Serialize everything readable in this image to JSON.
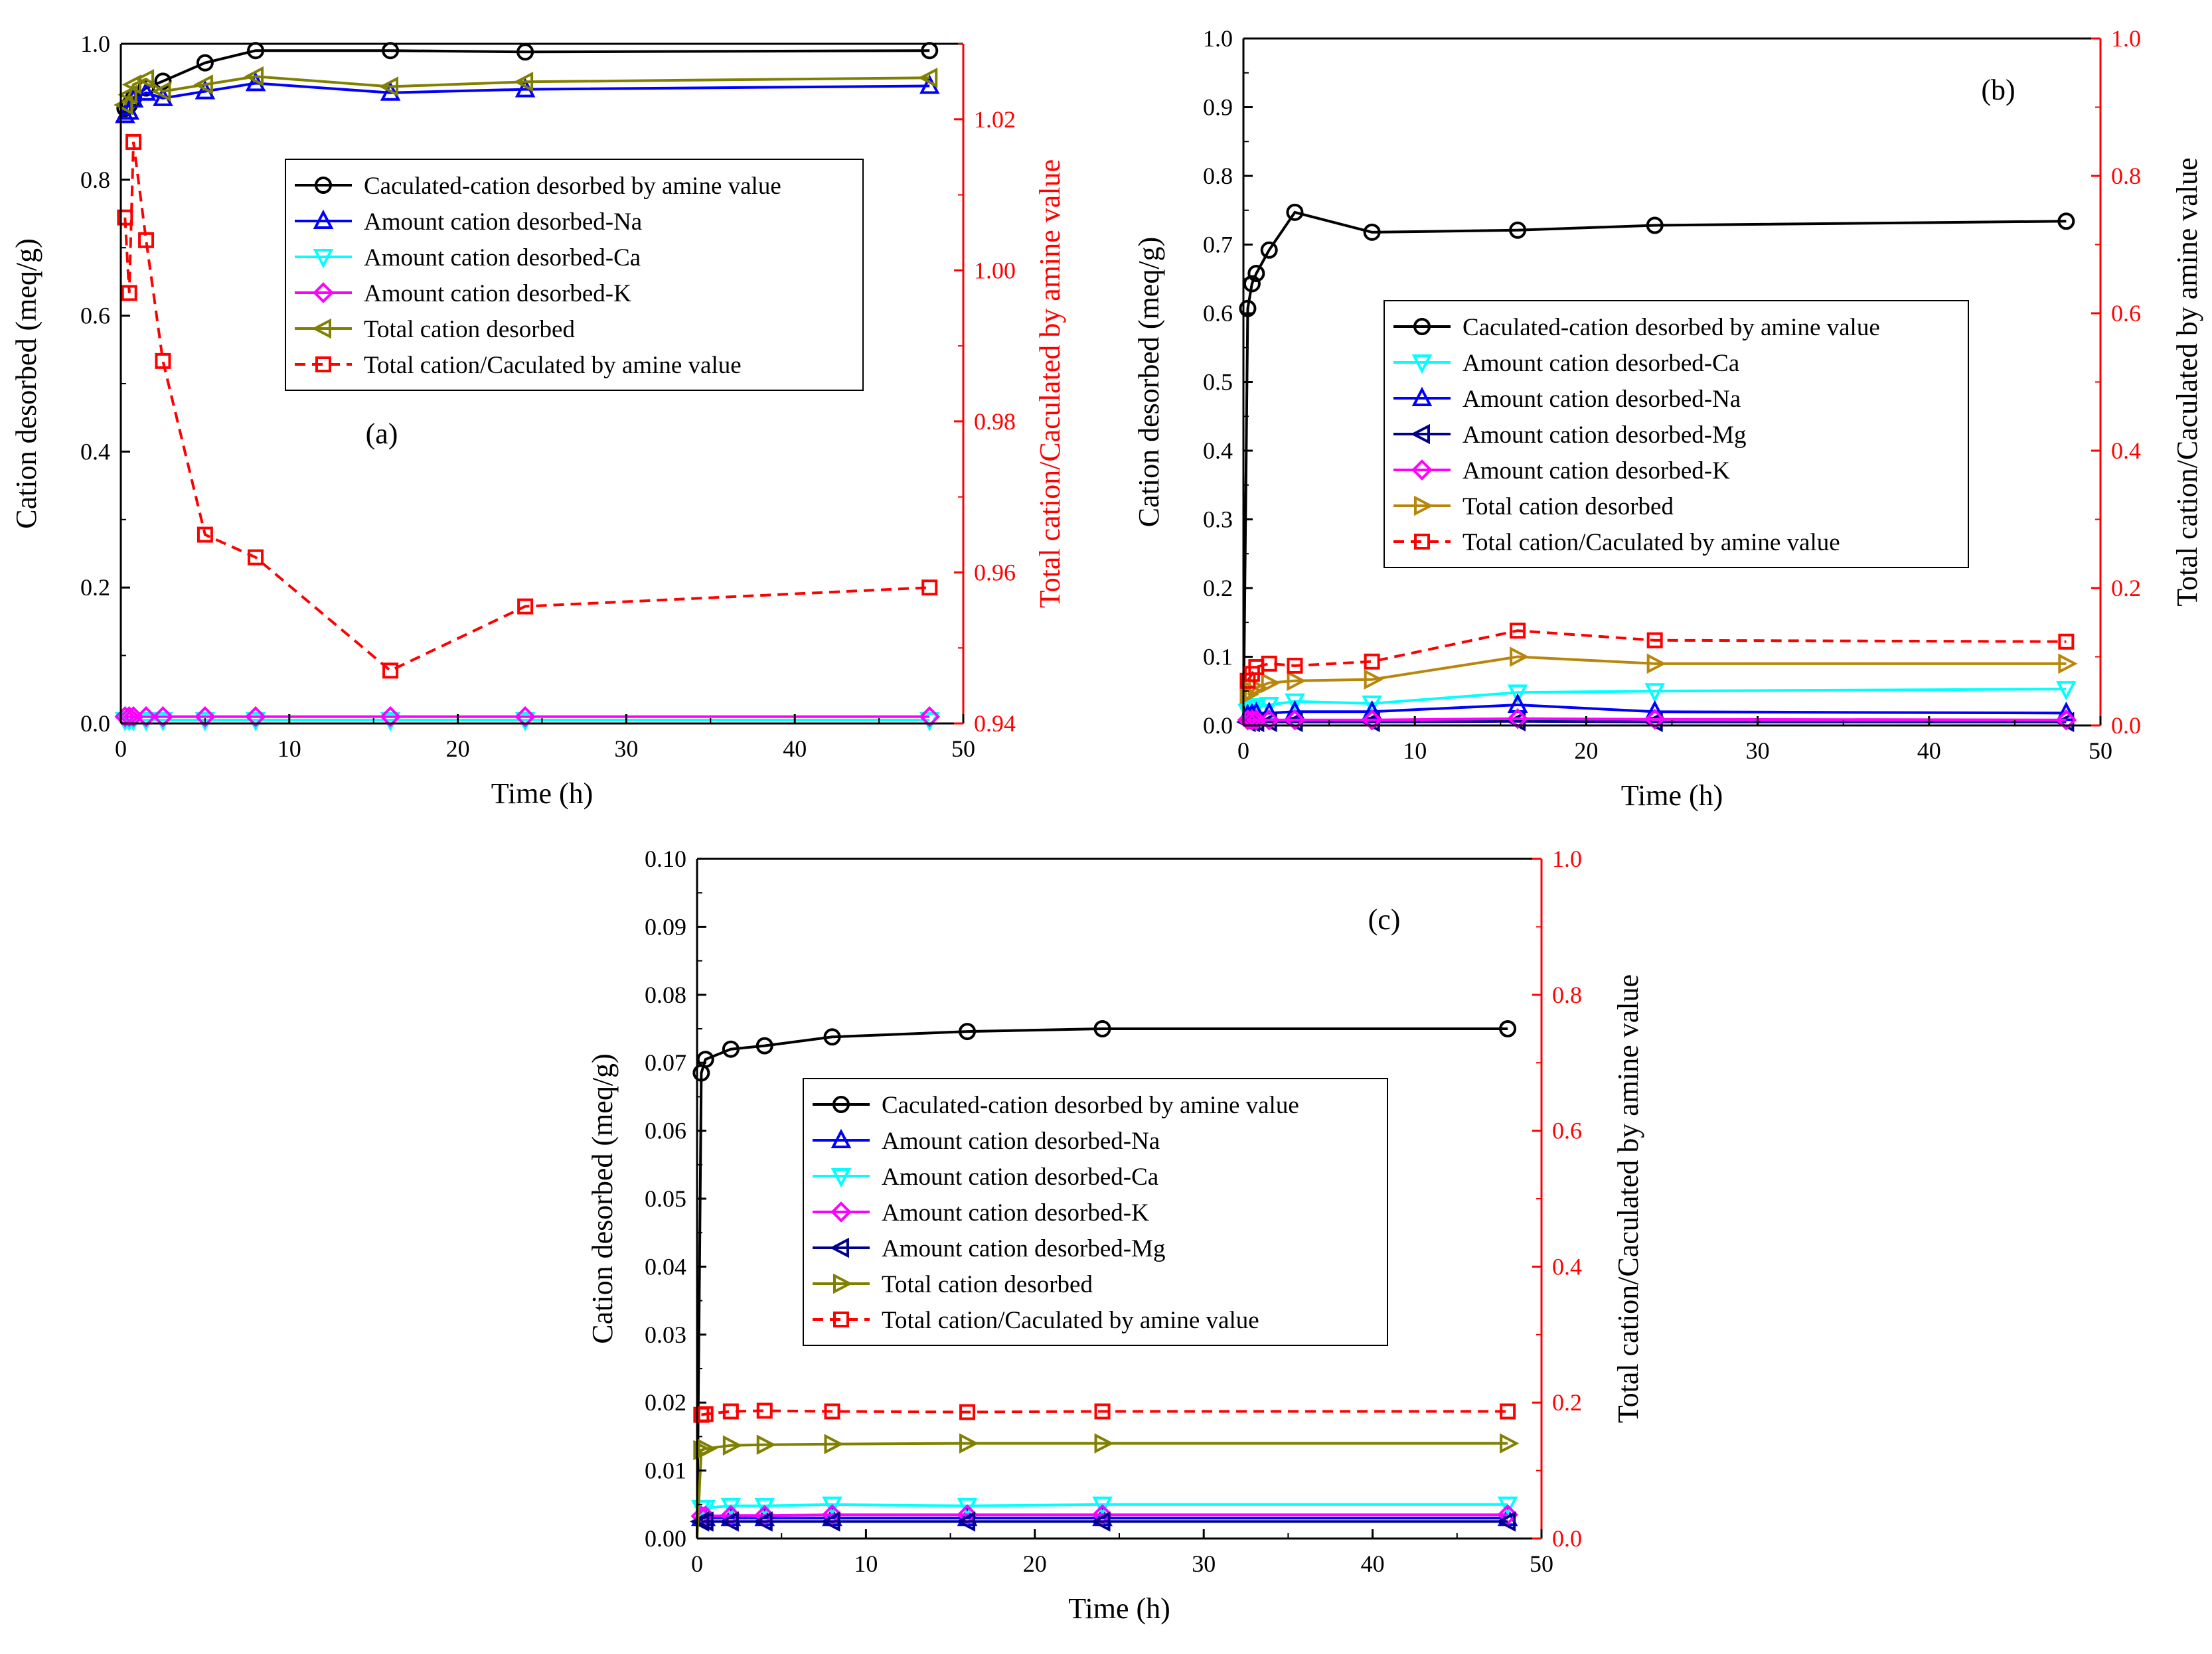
{
  "chart_data": [
    {
      "panel": "a",
      "type": "line",
      "panel_label": "(a)",
      "xlabel": "Time (h)",
      "ylabel": "Cation desorbed (meq/g)",
      "y2label": "Total cation/Caculated by amine value",
      "xlim": [
        0,
        50
      ],
      "ylim": [
        0,
        1.0
      ],
      "y2lim": [
        0.94,
        1.03
      ],
      "xticks": [
        "0",
        "10",
        "20",
        "30",
        "40",
        "50"
      ],
      "yticks": [
        "0.0",
        "0.2",
        "0.4",
        "0.6",
        "0.8",
        "1.0"
      ],
      "y2ticks": [
        "0.94",
        "0.96",
        "0.98",
        "1.00",
        "1.02"
      ],
      "series": [
        {
          "name": "Caculated-cation desorbed by  amine value",
          "axis": "left",
          "color": "#000000",
          "marker": "circle",
          "dash": false,
          "x": [
            0.25,
            0.5,
            0.75,
            1.5,
            2.5,
            5,
            8,
            16,
            24,
            48
          ],
          "y": [
            0.905,
            0.91,
            0.92,
            0.935,
            0.945,
            0.972,
            0.99,
            0.99,
            0.988,
            0.99
          ]
        },
        {
          "name": "Amount cation desorbed-Na",
          "axis": "left",
          "color": "#0000ff",
          "marker": "triangle-up",
          "dash": false,
          "x": [
            0.25,
            0.5,
            0.75,
            1.5,
            2.5,
            5,
            8,
            16,
            24,
            48
          ],
          "y": [
            0.895,
            0.9,
            0.918,
            0.928,
            0.92,
            0.93,
            0.942,
            0.928,
            0.933,
            0.938
          ]
        },
        {
          "name": "Amount cation desorbed-Ca",
          "axis": "left",
          "color": "#00ffff",
          "marker": "triangle-down",
          "dash": false,
          "x": [
            0.25,
            0.5,
            0.75,
            1.5,
            2.5,
            5,
            8,
            16,
            24,
            48
          ],
          "y": [
            0.005,
            0.005,
            0.005,
            0.005,
            0.005,
            0.005,
            0.005,
            0.005,
            0.005,
            0.005
          ]
        },
        {
          "name": "Amount cation desorbed-K",
          "axis": "left",
          "color": "#ff00ff",
          "marker": "diamond",
          "dash": false,
          "x": [
            0.25,
            0.5,
            0.75,
            1.5,
            2.5,
            5,
            8,
            16,
            24,
            48
          ],
          "y": [
            0.01,
            0.01,
            0.01,
            0.01,
            0.01,
            0.01,
            0.01,
            0.01,
            0.01,
            0.01
          ]
        },
        {
          "name": "Total cation desorbed",
          "axis": "left",
          "color": "#808000",
          "marker": "triangle-left",
          "dash": false,
          "x": [
            0.25,
            0.5,
            0.75,
            1.5,
            2.5,
            5,
            8,
            16,
            24,
            48
          ],
          "y": [
            0.91,
            0.925,
            0.94,
            0.948,
            0.93,
            0.94,
            0.952,
            0.937,
            0.944,
            0.95
          ]
        },
        {
          "name": "Total cation/Caculated by amine value",
          "axis": "right",
          "color": "#ff0000",
          "marker": "square",
          "dash": true,
          "x": [
            0.25,
            0.5,
            0.75,
            1.5,
            2.5,
            5,
            8,
            16,
            24,
            48
          ],
          "y": [
            1.007,
            0.997,
            1.017,
            1.004,
            0.988,
            0.965,
            0.962,
            0.947,
            0.9555,
            0.958
          ]
        }
      ]
    },
    {
      "panel": "b",
      "type": "line",
      "panel_label": "(b)",
      "xlabel": "Time (h)",
      "ylabel": "Cation desorbed (meq/g)",
      "y2label": "Total cation/Caculated by amine value",
      "xlim": [
        0,
        50
      ],
      "ylim": [
        0,
        1.0
      ],
      "y2lim": [
        0,
        1.0
      ],
      "xticks": [
        "0",
        "10",
        "20",
        "30",
        "40",
        "50"
      ],
      "yticks": [
        "0.0",
        "0.1",
        "0.2",
        "0.3",
        "0.4",
        "0.5",
        "0.6",
        "0.7",
        "0.8",
        "0.9",
        "1.0"
      ],
      "y2ticks": [
        "0.0",
        "0.2",
        "0.4",
        "0.6",
        "0.8",
        "1.0"
      ],
      "series": [
        {
          "name": "Caculated-cation desorbed by  amine value",
          "axis": "left",
          "color": "#000000",
          "marker": "circle",
          "dash": false,
          "x": [
            0,
            0.25,
            0.5,
            0.75,
            1.5,
            3,
            7.5,
            16,
            24,
            48
          ],
          "y": [
            0.0,
            0.607,
            0.643,
            0.658,
            0.692,
            0.747,
            0.718,
            0.721,
            0.728,
            0.734
          ]
        },
        {
          "name": "Amount cation desorbed-Ca",
          "axis": "left",
          "color": "#00ffff",
          "marker": "triangle-down",
          "dash": false,
          "x": [
            0.25,
            0.5,
            0.75,
            1.5,
            3,
            7.5,
            16,
            24,
            48
          ],
          "y": [
            0.02,
            0.025,
            0.028,
            0.03,
            0.035,
            0.032,
            0.048,
            0.05,
            0.053
          ]
        },
        {
          "name": "Amount cation desorbed-Na",
          "axis": "left",
          "color": "#0000ff",
          "marker": "triangle-up",
          "dash": false,
          "x": [
            0.25,
            0.5,
            0.75,
            1.5,
            3,
            7.5,
            16,
            24,
            48
          ],
          "y": [
            0.015,
            0.016,
            0.018,
            0.018,
            0.02,
            0.02,
            0.03,
            0.02,
            0.018
          ]
        },
        {
          "name": "Amount cation desorbed-Mg",
          "axis": "left",
          "color": "#00008b",
          "marker": "triangle-left",
          "dash": false,
          "x": [
            0.25,
            0.5,
            0.75,
            1.5,
            3,
            7.5,
            16,
            24,
            48
          ],
          "y": [
            0.005,
            0.005,
            0.005,
            0.005,
            0.005,
            0.005,
            0.006,
            0.005,
            0.005
          ]
        },
        {
          "name": "Amount cation desorbed-K",
          "axis": "left",
          "color": "#ff00ff",
          "marker": "diamond",
          "dash": false,
          "x": [
            0.25,
            0.5,
            0.75,
            1.5,
            3,
            7.5,
            16,
            24,
            48
          ],
          "y": [
            0.008,
            0.008,
            0.008,
            0.008,
            0.008,
            0.008,
            0.01,
            0.009,
            0.008
          ]
        },
        {
          "name": "Total cation desorbed",
          "axis": "left",
          "color": "#b8860b",
          "marker": "triangle-right",
          "dash": false,
          "x": [
            0.25,
            0.5,
            0.75,
            1.5,
            3,
            7.5,
            16,
            24,
            48
          ],
          "y": [
            0.045,
            0.05,
            0.055,
            0.062,
            0.065,
            0.067,
            0.1,
            0.09,
            0.09
          ]
        },
        {
          "name": "Total cation/Caculated by amine value",
          "axis": "right",
          "color": "#ff0000",
          "marker": "square",
          "dash": true,
          "x": [
            0.25,
            0.5,
            0.75,
            1.5,
            3,
            7.5,
            16,
            24,
            48
          ],
          "y": [
            0.065,
            0.075,
            0.085,
            0.09,
            0.087,
            0.093,
            0.138,
            0.124,
            0.122
          ]
        }
      ]
    },
    {
      "panel": "c",
      "type": "line",
      "panel_label": "(c)",
      "xlabel": "Time (h)",
      "ylabel": "Cation desorbed (meq/g)",
      "y2label": "Total cation/Caculated by amine value",
      "xlim": [
        0,
        50
      ],
      "ylim": [
        0,
        0.1
      ],
      "y2lim": [
        0,
        1.0
      ],
      "xticks": [
        "0",
        "10",
        "20",
        "30",
        "40",
        "50"
      ],
      "yticks": [
        "0.00",
        "0.01",
        "0.02",
        "0.03",
        "0.04",
        "0.05",
        "0.06",
        "0.07",
        "0.08",
        "0.09",
        "0.10"
      ],
      "y2ticks": [
        "0.0",
        "0.2",
        "0.4",
        "0.6",
        "0.8",
        "1.0"
      ],
      "series": [
        {
          "name": "Caculated-cation desorbed by  amine value",
          "axis": "left",
          "color": "#000000",
          "marker": "circle",
          "dash": false,
          "x": [
            0,
            0.25,
            0.5,
            2,
            4,
            8,
            16,
            24,
            48
          ],
          "y": [
            0.0,
            0.0685,
            0.0705,
            0.072,
            0.0725,
            0.0738,
            0.0746,
            0.075,
            0.075
          ]
        },
        {
          "name": "Amount cation desorbed-Na",
          "axis": "left",
          "color": "#0000ff",
          "marker": "triangle-up",
          "dash": false,
          "x": [
            0.25,
            0.5,
            2,
            4,
            8,
            16,
            24,
            48
          ],
          "y": [
            0.003,
            0.003,
            0.003,
            0.003,
            0.003,
            0.003,
            0.003,
            0.003
          ]
        },
        {
          "name": "Amount cation desorbed-Ca",
          "axis": "left",
          "color": "#00ffff",
          "marker": "triangle-down",
          "dash": false,
          "x": [
            0.25,
            0.5,
            2,
            4,
            8,
            16,
            24,
            48
          ],
          "y": [
            0.0045,
            0.0045,
            0.0048,
            0.0048,
            0.005,
            0.0048,
            0.005,
            0.005
          ]
        },
        {
          "name": "Amount cation desorbed-K",
          "axis": "left",
          "color": "#ff00ff",
          "marker": "diamond",
          "dash": false,
          "x": [
            0.25,
            0.5,
            2,
            4,
            8,
            16,
            24,
            48
          ],
          "y": [
            0.0033,
            0.0033,
            0.0034,
            0.0034,
            0.0035,
            0.0035,
            0.0035,
            0.0035
          ]
        },
        {
          "name": "Amount cation desorbed-Mg",
          "axis": "left",
          "color": "#00008b",
          "marker": "triangle-left",
          "dash": false,
          "x": [
            0.25,
            0.5,
            2,
            4,
            8,
            16,
            24,
            48
          ],
          "y": [
            0.0025,
            0.0025,
            0.0025,
            0.0025,
            0.0025,
            0.0025,
            0.0025,
            0.0025
          ]
        },
        {
          "name": "Total cation desorbed",
          "axis": "left",
          "color": "#808000",
          "marker": "triangle-right",
          "dash": false,
          "x": [
            0,
            0.25,
            0.5,
            2,
            4,
            8,
            16,
            24,
            48
          ],
          "y": [
            0.0,
            0.013,
            0.0132,
            0.0137,
            0.0138,
            0.0139,
            0.014,
            0.014,
            0.014
          ]
        },
        {
          "name": "Total cation/Caculated by amine value",
          "axis": "right",
          "color": "#ff0000",
          "marker": "square",
          "dash": true,
          "x": [
            0.25,
            0.5,
            2,
            4,
            8,
            16,
            24,
            48
          ],
          "y": [
            0.182,
            0.183,
            0.187,
            0.188,
            0.187,
            0.186,
            0.187,
            0.187
          ]
        }
      ]
    }
  ]
}
